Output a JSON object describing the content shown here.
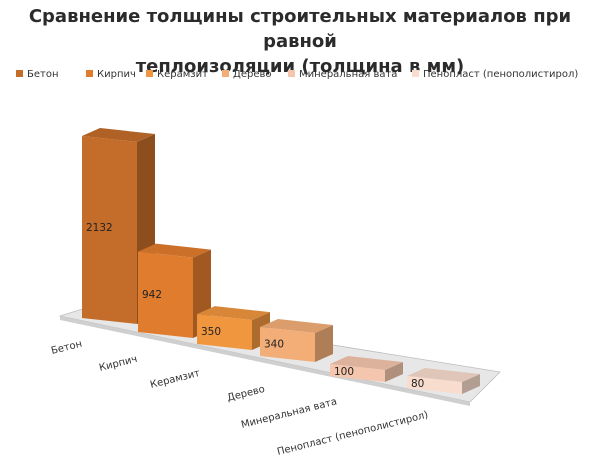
{
  "chart_data": {
    "type": "bar",
    "title_line1": "Сравнение толщины строительных материалов при равной",
    "title_line2": "теплоизоляции (толщина в мм)",
    "categories": [
      "Бетон",
      "Кирпич",
      "Керамзит",
      "Дерево",
      "Минеральная вата",
      "Пенопласт (пенополистирол)"
    ],
    "values": [
      2132,
      942,
      350,
      340,
      100,
      80
    ],
    "colors": [
      "#c46c29",
      "#e07c2e",
      "#f0963f",
      "#f3ae78",
      "#f4c6ae",
      "#f8dccd"
    ],
    "legend_position": "top",
    "grid": false
  }
}
